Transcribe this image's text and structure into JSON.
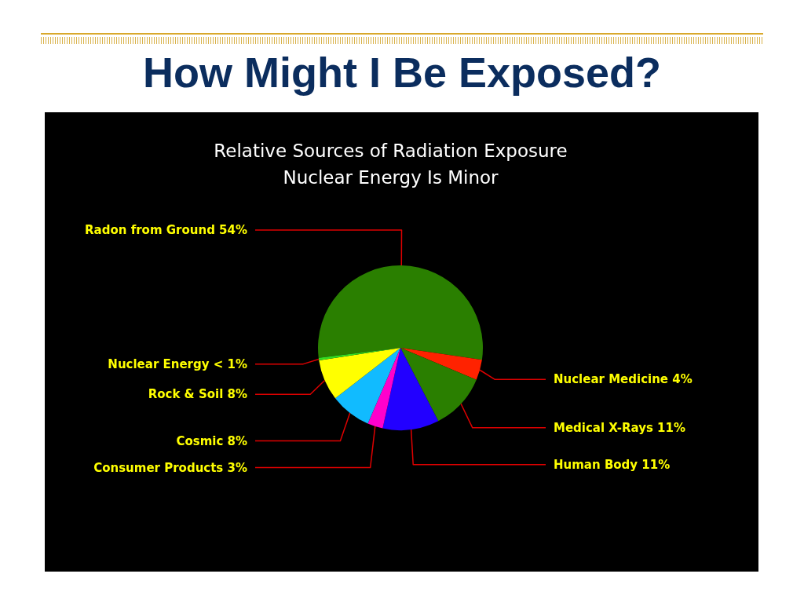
{
  "chart_data": {
    "type": "pie",
    "title": "How Might I Be Exposed?",
    "subtitle": "Relative Sources of Radiation Exposure\nNuclear Energy Is Minor",
    "categories": [
      "Radon from Ground",
      "Nuclear Medicine",
      "Medical X-Rays",
      "Human Body",
      "Consumer Products",
      "Cosmic",
      "Rock & Soil",
      "Nuclear Energy"
    ],
    "values": [
      54,
      4,
      11,
      11,
      3,
      8,
      8,
      0.5
    ],
    "value_labels": [
      "54%",
      "4%",
      "11%",
      "11%",
      "3%",
      "8%",
      "8%",
      "< 1%"
    ],
    "colors": [
      "#2a7f00",
      "#ff2200",
      "#2a7f00",
      "#2200ff",
      "#ff00cc",
      "#11bbff",
      "#ffff00",
      "#33dd22"
    ]
  }
}
